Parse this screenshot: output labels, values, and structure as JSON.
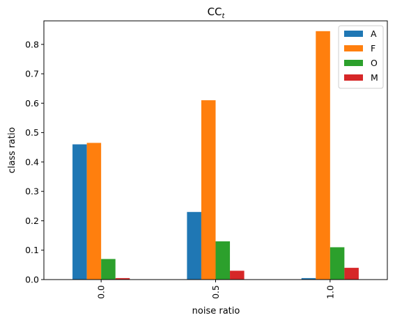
{
  "chart_data": {
    "type": "bar",
    "title_main": "CC",
    "title_sub": "t",
    "xlabel": "noise ratio",
    "ylabel": "class ratio",
    "categories": [
      "0.0",
      "0.5",
      "1.0"
    ],
    "ylim": [
      0,
      0.88
    ],
    "yticks": [
      "0.0",
      "0.1",
      "0.2",
      "0.3",
      "0.4",
      "0.5",
      "0.6",
      "0.7",
      "0.8"
    ],
    "grid": false,
    "legend_position": "top-right",
    "series": [
      {
        "name": "A",
        "color": "#1f77b4",
        "values": [
          0.46,
          0.23,
          0.005
        ]
      },
      {
        "name": "F",
        "color": "#ff7f0e",
        "values": [
          0.465,
          0.61,
          0.845
        ]
      },
      {
        "name": "O",
        "color": "#2ca02c",
        "values": [
          0.07,
          0.13,
          0.11
        ]
      },
      {
        "name": "M",
        "color": "#d62728",
        "values": [
          0.005,
          0.03,
          0.04
        ]
      }
    ]
  }
}
